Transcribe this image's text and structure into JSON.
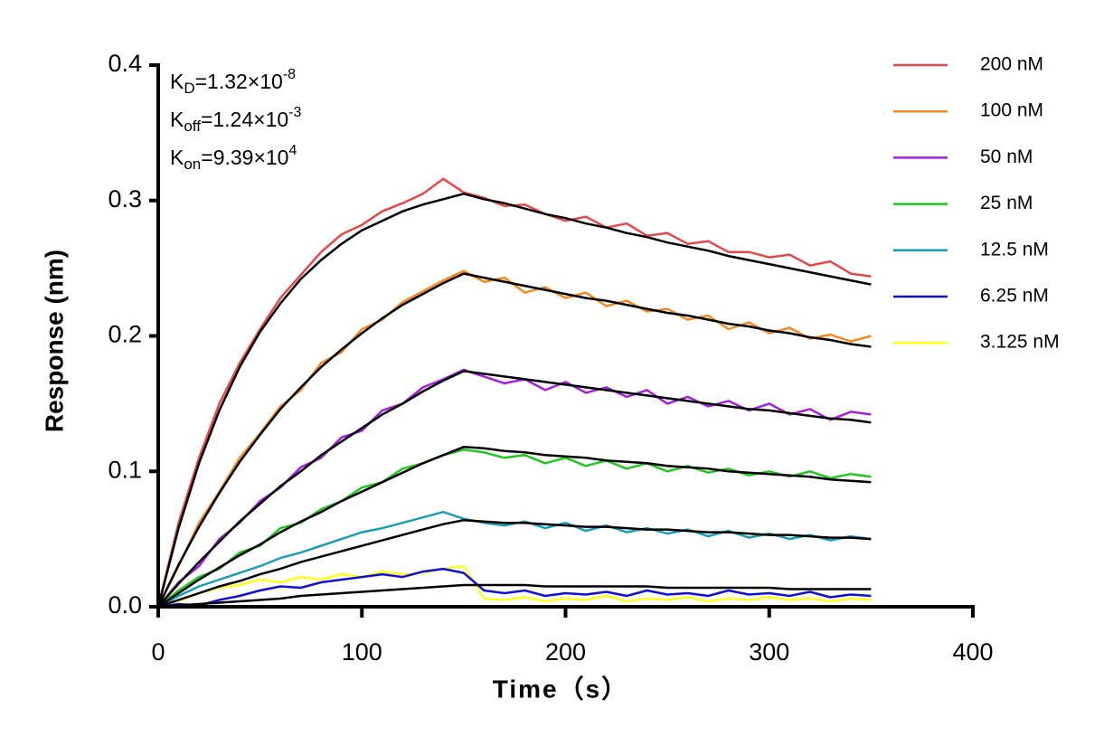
{
  "chart_data": {
    "type": "line",
    "xlabel": "Time（s）",
    "ylabel": "Response (nm)",
    "annotations": [
      {
        "symbol": "K",
        "subscript": "D",
        "text": "=1.32×10",
        "superscript": "-8"
      },
      {
        "symbol": "K",
        "subscript": "off",
        "text": "=1.24×10",
        "superscript": "-3"
      },
      {
        "symbol": "K",
        "subscript": "on",
        "text": "=9.39×10",
        "superscript": "4"
      }
    ],
    "x": [
      0,
      10,
      20,
      30,
      40,
      50,
      60,
      70,
      80,
      90,
      100,
      110,
      120,
      130,
      140,
      150,
      160,
      170,
      180,
      190,
      200,
      210,
      220,
      230,
      240,
      250,
      260,
      270,
      280,
      290,
      300,
      310,
      320,
      330,
      340,
      350
    ],
    "xlim": [
      0,
      400
    ],
    "xticks": [
      0,
      100,
      200,
      300,
      400
    ],
    "ylim": [
      0,
      0.4
    ],
    "yticks": [
      {
        "value": 0,
        "label": "0.0"
      },
      0.1,
      0.2,
      0.3,
      0.4
    ],
    "series": [
      {
        "name": "200 nM",
        "color": "#e8474a",
        "values": [
          0,
          0.062,
          0.11,
          0.15,
          0.18,
          0.205,
          0.228,
          0.245,
          0.262,
          0.275,
          0.282,
          0.292,
          0.298,
          0.305,
          0.316,
          0.306,
          0.302,
          0.296,
          0.297,
          0.29,
          0.285,
          0.288,
          0.28,
          0.283,
          0.274,
          0.276,
          0.268,
          0.27,
          0.262,
          0.262,
          0.258,
          0.26,
          0.252,
          0.255,
          0.246,
          0.244
        ]
      },
      {
        "name": "100 nM",
        "color": "#f5891f",
        "values": [
          0,
          0.03,
          0.062,
          0.085,
          0.11,
          0.128,
          0.148,
          0.16,
          0.18,
          0.188,
          0.205,
          0.212,
          0.225,
          0.233,
          0.241,
          0.248,
          0.24,
          0.243,
          0.232,
          0.236,
          0.228,
          0.232,
          0.222,
          0.226,
          0.218,
          0.22,
          0.212,
          0.215,
          0.205,
          0.21,
          0.202,
          0.206,
          0.198,
          0.201,
          0.196,
          0.2
        ]
      },
      {
        "name": "50 nM",
        "color": "#a61fe0",
        "values": [
          0,
          0.018,
          0.03,
          0.05,
          0.062,
          0.078,
          0.088,
          0.103,
          0.11,
          0.125,
          0.13,
          0.145,
          0.15,
          0.162,
          0.168,
          0.175,
          0.17,
          0.165,
          0.168,
          0.16,
          0.166,
          0.158,
          0.162,
          0.155,
          0.16,
          0.15,
          0.155,
          0.148,
          0.152,
          0.145,
          0.15,
          0.142,
          0.146,
          0.138,
          0.144,
          0.142
        ]
      },
      {
        "name": "25 nM",
        "color": "#1ec81e",
        "values": [
          0,
          0.012,
          0.022,
          0.028,
          0.04,
          0.045,
          0.058,
          0.062,
          0.072,
          0.078,
          0.088,
          0.092,
          0.102,
          0.106,
          0.112,
          0.116,
          0.114,
          0.11,
          0.112,
          0.106,
          0.11,
          0.104,
          0.108,
          0.102,
          0.106,
          0.1,
          0.104,
          0.099,
          0.102,
          0.097,
          0.1,
          0.096,
          0.1,
          0.095,
          0.098,
          0.096
        ]
      },
      {
        "name": "12.5 nM",
        "color": "#1a9eb5",
        "values": [
          0,
          0.008,
          0.015,
          0.02,
          0.025,
          0.03,
          0.036,
          0.04,
          0.045,
          0.05,
          0.055,
          0.058,
          0.062,
          0.066,
          0.07,
          0.065,
          0.062,
          0.06,
          0.063,
          0.058,
          0.062,
          0.056,
          0.06,
          0.055,
          0.058,
          0.054,
          0.057,
          0.052,
          0.056,
          0.051,
          0.054,
          0.05,
          0.053,
          0.049,
          0.052,
          0.05
        ]
      },
      {
        "name": "6.25 nM",
        "color": "#1010d8",
        "values": [
          0,
          0.002,
          0.001,
          0.005,
          0.008,
          0.012,
          0.015,
          0.014,
          0.018,
          0.02,
          0.022,
          0.024,
          0.022,
          0.026,
          0.028,
          0.025,
          0.012,
          0.01,
          0.012,
          0.008,
          0.01,
          0.009,
          0.011,
          0.008,
          0.012,
          0.009,
          0.01,
          0.008,
          0.012,
          0.009,
          0.01,
          0.008,
          0.011,
          0.007,
          0.009,
          0.008
        ]
      },
      {
        "name": "3.125 nM",
        "color": "#ffff1a",
        "values": [
          0,
          0.004,
          0.01,
          0.014,
          0.016,
          0.02,
          0.018,
          0.022,
          0.02,
          0.024,
          0.022,
          0.026,
          0.024,
          0.025,
          0.028,
          0.03,
          0.006,
          0.005,
          0.007,
          0.004,
          0.006,
          0.005,
          0.008,
          0.004,
          0.006,
          0.005,
          0.007,
          0.004,
          0.006,
          0.005,
          0.007,
          0.005,
          0.006,
          0.004,
          0.006,
          0.005
        ]
      }
    ],
    "fits": [
      {
        "color": "#000000",
        "values": [
          0,
          0.058,
          0.106,
          0.145,
          0.177,
          0.203,
          0.224,
          0.242,
          0.256,
          0.268,
          0.278,
          0.285,
          0.292,
          0.297,
          0.301,
          0.305,
          0.301,
          0.298,
          0.294,
          0.29,
          0.287,
          0.283,
          0.28,
          0.276,
          0.273,
          0.269,
          0.266,
          0.263,
          0.259,
          0.256,
          0.253,
          0.25,
          0.247,
          0.244,
          0.241,
          0.238
        ]
      },
      {
        "color": "#000000",
        "values": [
          0,
          0.031,
          0.059,
          0.084,
          0.107,
          0.127,
          0.146,
          0.162,
          0.177,
          0.19,
          0.202,
          0.213,
          0.223,
          0.231,
          0.239,
          0.246,
          0.243,
          0.24,
          0.237,
          0.234,
          0.231,
          0.228,
          0.226,
          0.223,
          0.22,
          0.217,
          0.215,
          0.212,
          0.209,
          0.207,
          0.204,
          0.202,
          0.199,
          0.197,
          0.194,
          0.192
        ]
      },
      {
        "color": "#000000",
        "values": [
          0,
          0.017,
          0.033,
          0.048,
          0.063,
          0.076,
          0.089,
          0.1,
          0.112,
          0.122,
          0.132,
          0.142,
          0.15,
          0.159,
          0.167,
          0.174,
          0.172,
          0.17,
          0.168,
          0.166,
          0.164,
          0.162,
          0.16,
          0.158,
          0.156,
          0.154,
          0.152,
          0.15,
          0.148,
          0.146,
          0.145,
          0.143,
          0.141,
          0.139,
          0.138,
          0.136
        ]
      },
      {
        "color": "#000000",
        "values": [
          0,
          0.01,
          0.02,
          0.029,
          0.038,
          0.046,
          0.055,
          0.063,
          0.07,
          0.078,
          0.085,
          0.092,
          0.099,
          0.106,
          0.112,
          0.118,
          0.117,
          0.115,
          0.114,
          0.112,
          0.111,
          0.11,
          0.108,
          0.107,
          0.106,
          0.104,
          0.103,
          0.102,
          0.1,
          0.099,
          0.098,
          0.097,
          0.096,
          0.094,
          0.093,
          0.092
        ]
      },
      {
        "color": "#000000",
        "values": [
          0,
          0.005,
          0.01,
          0.015,
          0.019,
          0.024,
          0.028,
          0.033,
          0.037,
          0.041,
          0.045,
          0.049,
          0.053,
          0.057,
          0.061,
          0.064,
          0.063,
          0.062,
          0.062,
          0.061,
          0.06,
          0.059,
          0.059,
          0.058,
          0.057,
          0.057,
          0.056,
          0.055,
          0.055,
          0.054,
          0.053,
          0.053,
          0.052,
          0.051,
          0.051,
          0.05
        ]
      },
      {
        "color": "#000000",
        "values": [
          0,
          0.001,
          0.002,
          0.003,
          0.004,
          0.005,
          0.006,
          0.008,
          0.009,
          0.01,
          0.011,
          0.012,
          0.013,
          0.014,
          0.015,
          0.016,
          0.016,
          0.016,
          0.016,
          0.015,
          0.015,
          0.015,
          0.015,
          0.015,
          0.015,
          0.014,
          0.014,
          0.014,
          0.014,
          0.014,
          0.014,
          0.013,
          0.013,
          0.013,
          0.013,
          0.013
        ]
      }
    ],
    "legend": "right"
  }
}
